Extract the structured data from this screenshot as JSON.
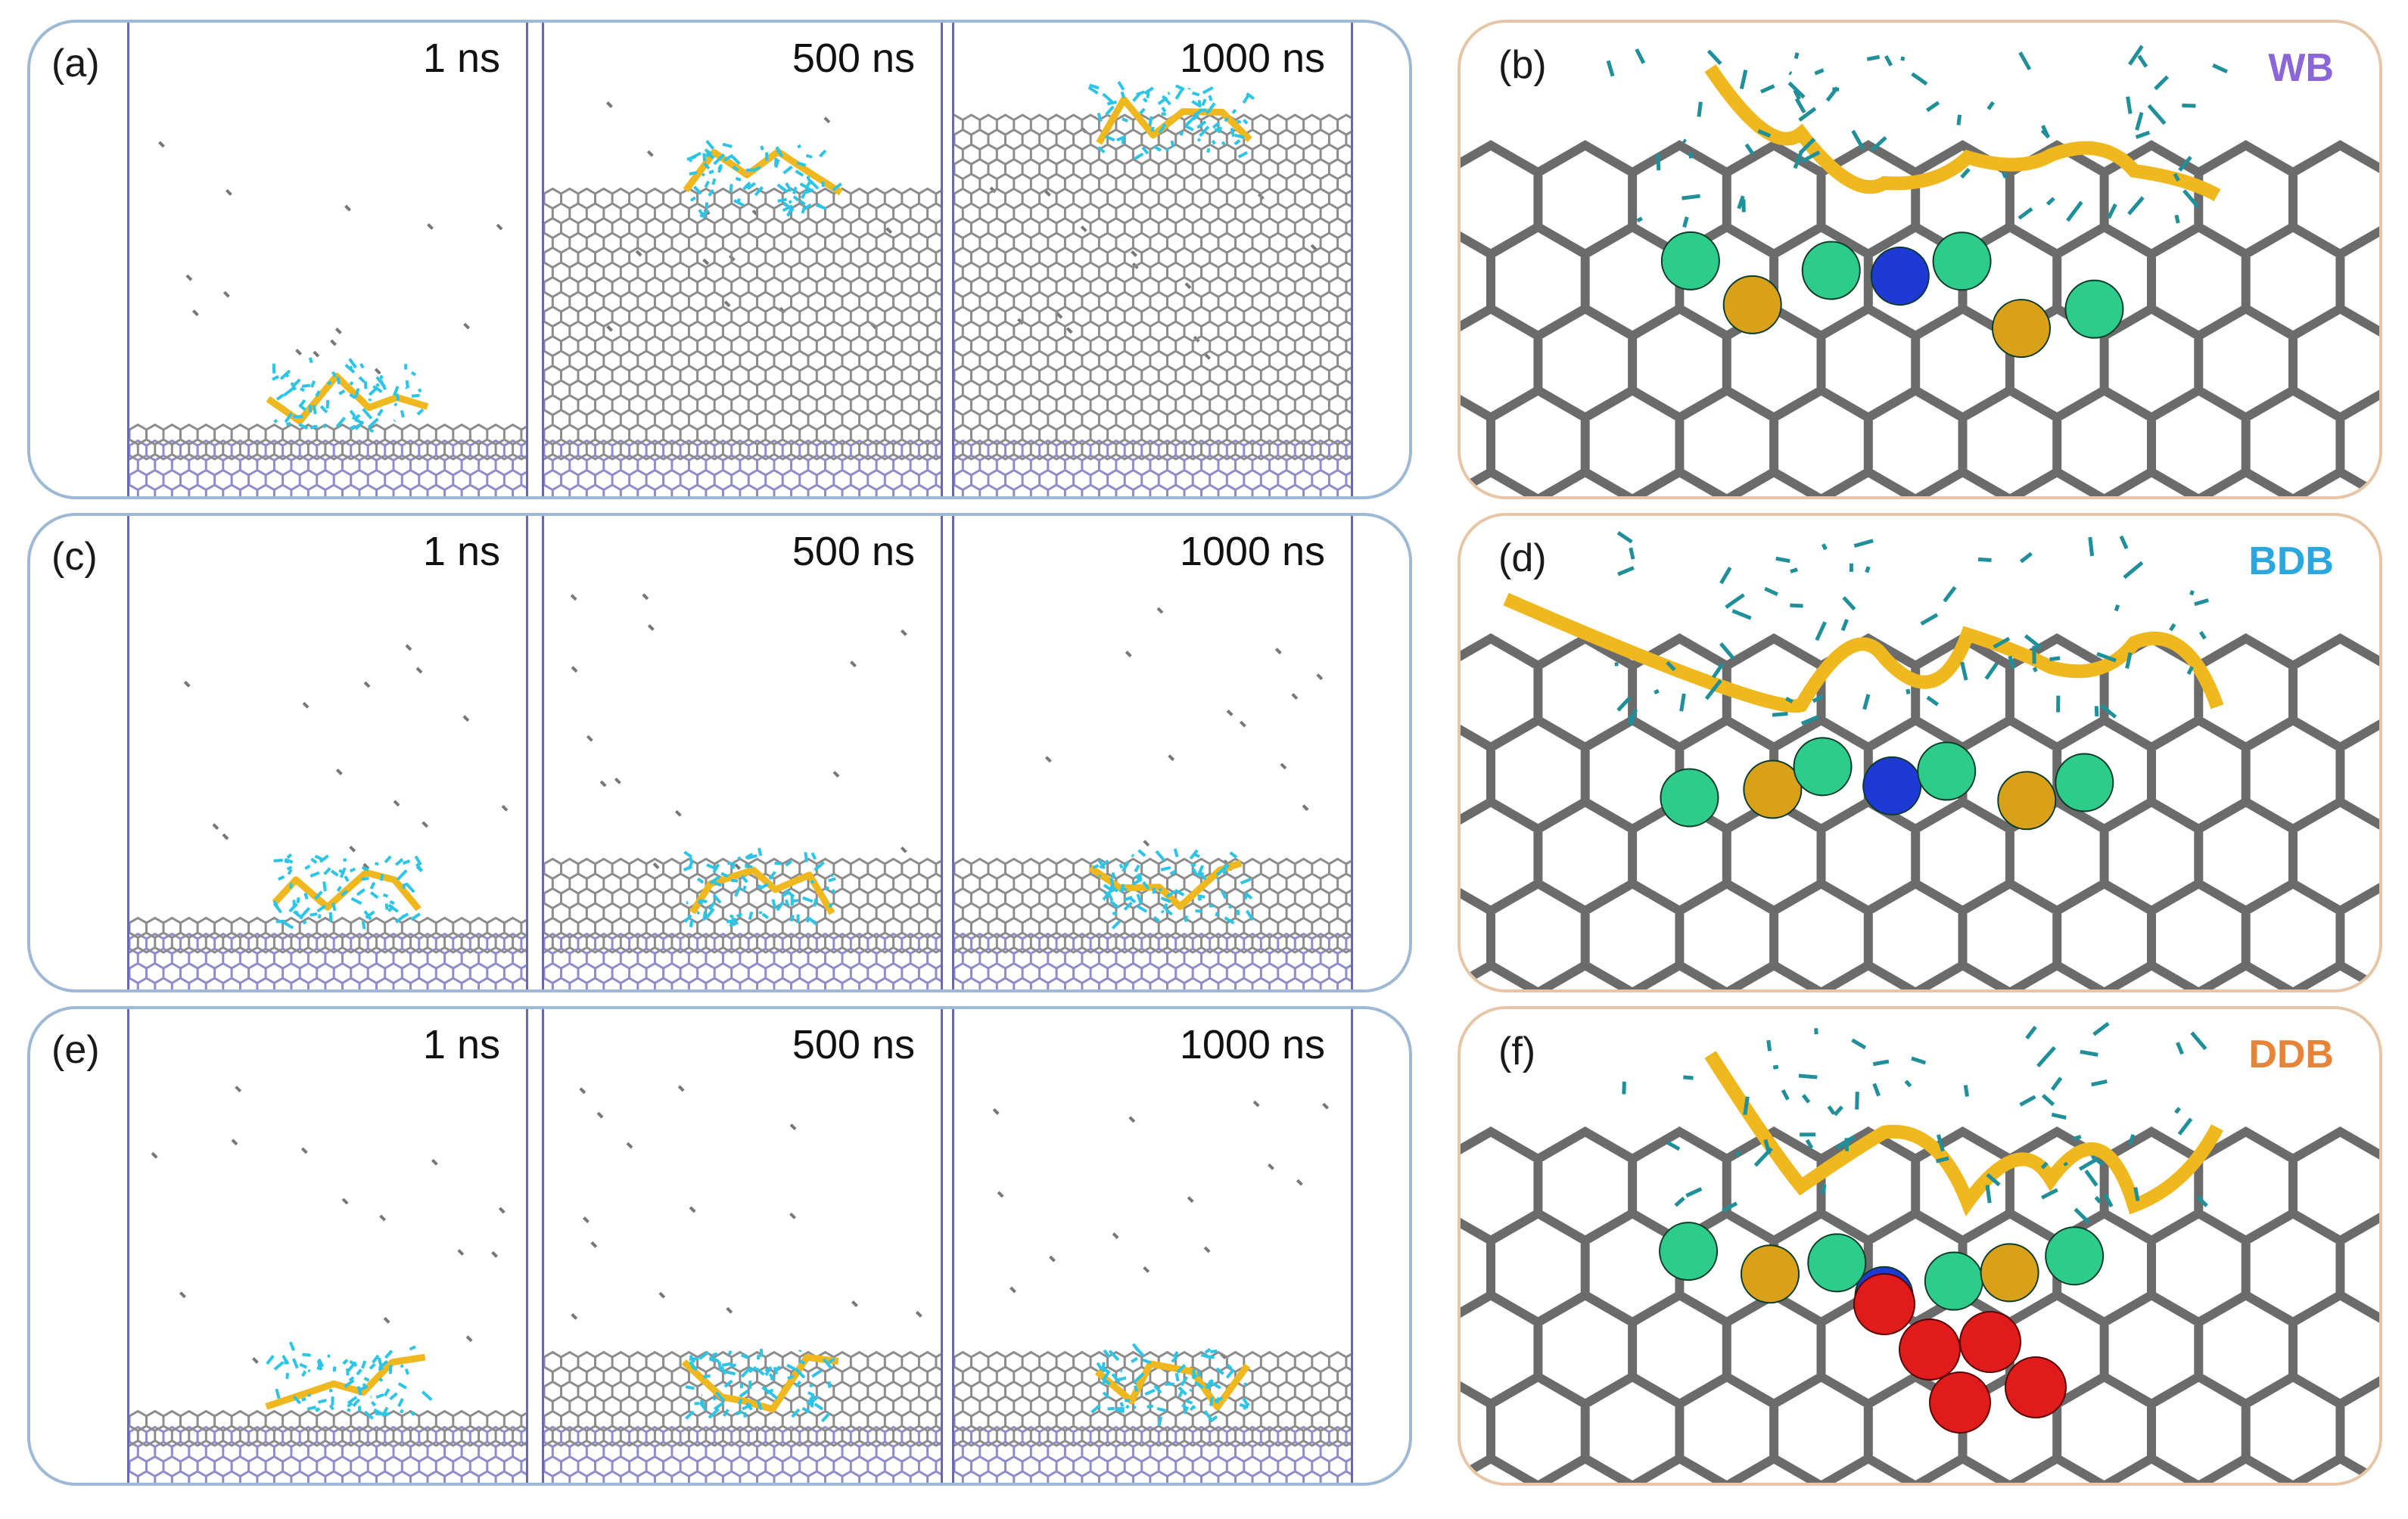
{
  "figure": {
    "rows": [
      {
        "label": "(a)",
        "times": [
          "1 ns",
          "500 ns",
          "1000 ns"
        ],
        "surface_fill": [
          0.1,
          0.62,
          0.82
        ],
        "detail": {
          "label": "(b)",
          "tag": "WB",
          "tag_color": "#8a66d8"
        }
      },
      {
        "label": "(c)",
        "times": [
          "1 ns",
          "500 ns",
          "1000 ns"
        ],
        "surface_fill": [
          0.12,
          0.18,
          0.2
        ],
        "detail": {
          "label": "(d)",
          "tag": "BDB",
          "tag_color": "#2aa7de"
        }
      },
      {
        "label": "(e)",
        "times": [
          "1 ns",
          "500 ns",
          "1000 ns"
        ],
        "surface_fill": [
          0.12,
          0.18,
          0.18
        ],
        "detail": {
          "label": "(f)",
          "tag": "DDB",
          "tag_color": "#e88438"
        }
      }
    ],
    "colors": {
      "surface_gray": "#8c8c8c",
      "base_purple": "#8f8cc9",
      "molecule_cyan": "#2ec4e6",
      "ribbon_gold": "#f0b81f",
      "sphere_green": "#2ecc8a",
      "sphere_blue": "#1f3ad4",
      "sphere_gold": "#d9a11a",
      "sphere_red": "#e01b1b"
    }
  }
}
